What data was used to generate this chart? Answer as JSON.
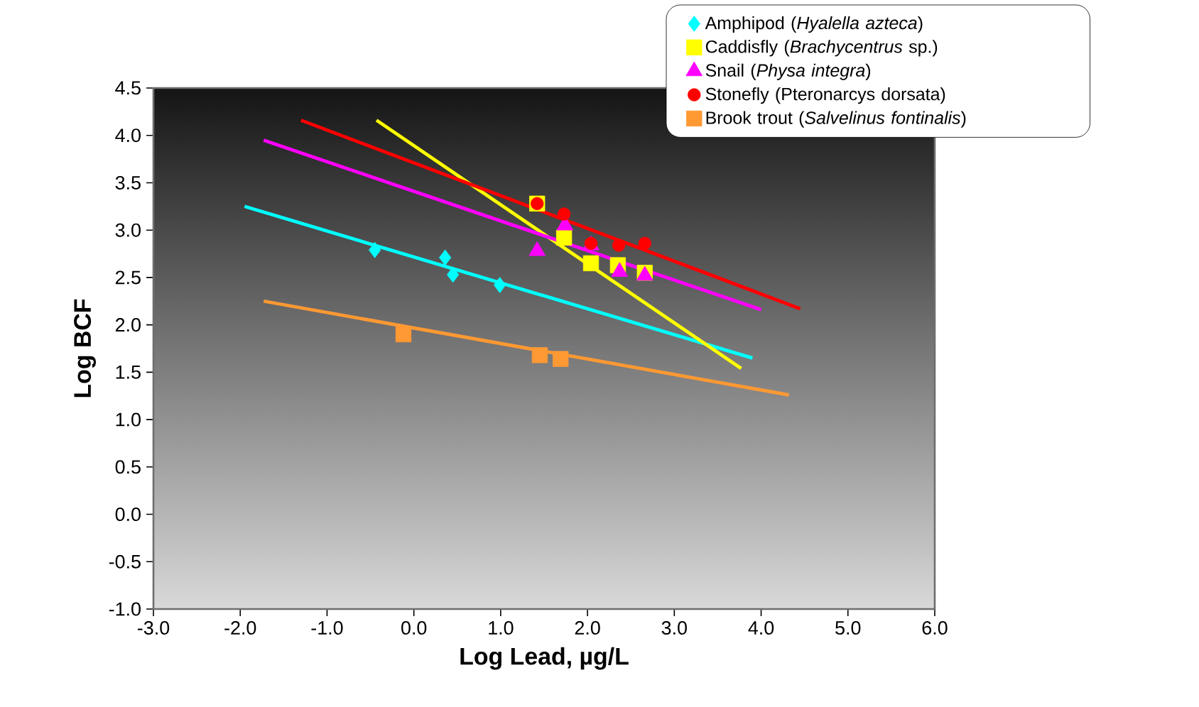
{
  "chart_data": {
    "type": "scatter",
    "xlabel": "Log Lead, µg/L",
    "ylabel": "Log BCF",
    "xlim": [
      -3,
      6
    ],
    "ylim": [
      -1,
      4.5
    ],
    "xticks": [
      {
        "value": -3,
        "label": "-3.0"
      },
      {
        "value": -2,
        "label": "-2.0"
      },
      {
        "value": -1,
        "label": "-1.0"
      },
      {
        "value": 0,
        "label": "0.0"
      },
      {
        "value": 1,
        "label": "1.0"
      },
      {
        "value": 2,
        "label": "2.0"
      },
      {
        "value": 3,
        "label": "3.0"
      },
      {
        "value": 4,
        "label": "4.0"
      },
      {
        "value": 5,
        "label": "5.0"
      },
      {
        "value": 6,
        "label": "6.0"
      }
    ],
    "yticks": [
      {
        "value": -1,
        "label": "-1.0"
      },
      {
        "value": -0.5,
        "label": "-0.5"
      },
      {
        "value": 0,
        "label": "0.0"
      },
      {
        "value": 0.5,
        "label": "0.5"
      },
      {
        "value": 1,
        "label": "1.0"
      },
      {
        "value": 1.5,
        "label": "1.5"
      },
      {
        "value": 2,
        "label": "2.0"
      },
      {
        "value": 2.5,
        "label": "2.5"
      },
      {
        "value": 3,
        "label": "3.0"
      },
      {
        "value": 3.5,
        "label": "3.5"
      },
      {
        "value": 4,
        "label": "4.0"
      },
      {
        "value": 4.5,
        "label": "4.5"
      }
    ],
    "legend": "top right",
    "grid": false,
    "series": [
      {
        "name": "Amphipod (*Hyalella azteca*)",
        "marker": "diamond",
        "color": "#00ffff",
        "x": [
          -0.45,
          0.36,
          0.45,
          0.99
        ],
        "values": [
          2.79,
          2.71,
          2.53,
          2.42
        ]
      },
      {
        "name": "Caddisfly (*Brachycentrus* sp.)",
        "marker": "square",
        "color": "#ffff00",
        "x": [
          1.42,
          1.73,
          2.04,
          2.35,
          2.66
        ],
        "values": [
          3.28,
          2.92,
          2.65,
          2.63,
          2.55
        ]
      },
      {
        "name": "Snail (*Physa integra*)",
        "marker": "triangle",
        "color": "#ff00ff",
        "x": [
          1.42,
          1.74,
          2.04,
          2.37,
          2.66
        ],
        "values": [
          2.78,
          3.05,
          2.84,
          2.56,
          2.52
        ]
      },
      {
        "name": "Stonefly (Pteronarcys dorsata)",
        "marker": "circle",
        "color": "#ff0000",
        "x": [
          1.42,
          1.73,
          2.04,
          2.36,
          2.66
        ],
        "values": [
          3.28,
          3.17,
          2.86,
          2.84,
          2.86
        ]
      },
      {
        "name": "Brook trout (*Salvelinus fontinalis*)",
        "marker": "square",
        "color": "#ff9933",
        "x": [
          -0.12,
          1.45,
          1.69
        ],
        "values": [
          1.9,
          1.68,
          1.64
        ]
      },
      {
        "type": "line",
        "line_style": "solid",
        "color": "#00ffff",
        "x": [
          -1.95,
          3.9
        ],
        "values": [
          3.25,
          1.65
        ]
      },
      {
        "type": "line",
        "line_style": "solid",
        "color": "#ffff00",
        "x": [
          -0.43,
          3.77
        ],
        "values": [
          4.16,
          1.54
        ]
      },
      {
        "type": "line",
        "line_style": "solid",
        "color": "#ff00ff",
        "x": [
          -1.73,
          4.0
        ],
        "values": [
          3.95,
          2.16
        ]
      },
      {
        "type": "line",
        "line_style": "solid",
        "color": "#ff0000",
        "x": [
          -1.3,
          4.45
        ],
        "values": [
          4.16,
          2.17
        ]
      },
      {
        "type": "line",
        "line_style": "solid",
        "color": "#ff9933",
        "x": [
          -1.73,
          4.32
        ],
        "values": [
          2.25,
          1.26
        ]
      }
    ]
  }
}
